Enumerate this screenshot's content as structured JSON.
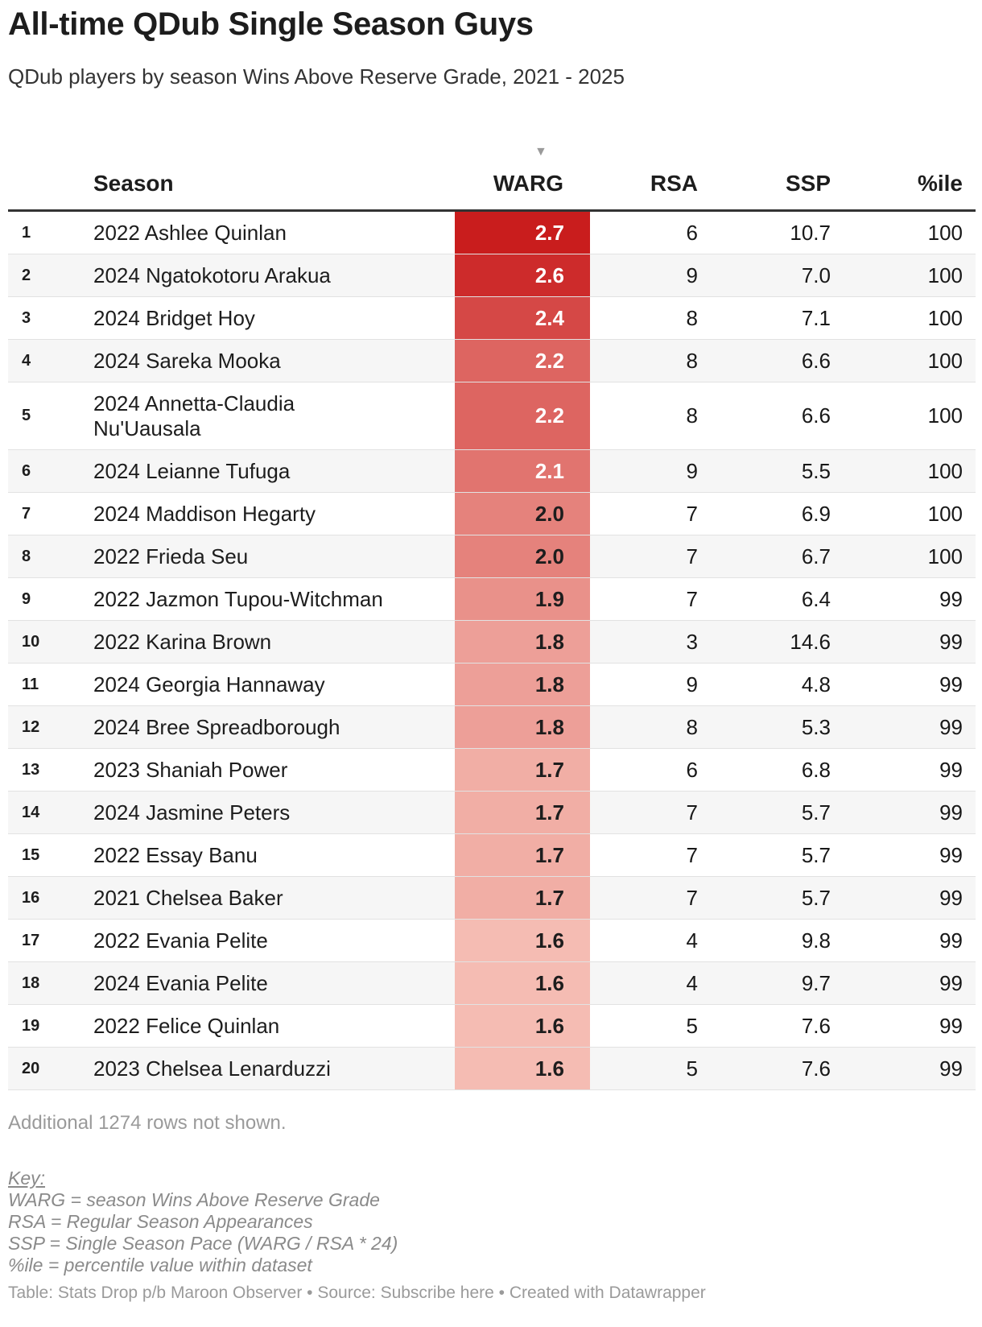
{
  "title": "All-time QDub Single Season Guys",
  "subtitle": "QDub players by season Wins Above Reserve Grade, 2021 - 2025",
  "columns": {
    "rank": "",
    "season": "Season",
    "warg": "WARG",
    "rsa": "RSA",
    "ssp": "SSP",
    "pct": "%ile"
  },
  "sort": {
    "column": "WARG",
    "direction": "descending",
    "indicator": "▼"
  },
  "colors": {
    "heat_low": "#f5bcb3",
    "heat_high": "#c91d1d",
    "header_rule": "#333333",
    "stripe": "#f6f6f6"
  },
  "chart_data": {
    "type": "table",
    "columns": [
      "",
      "Season",
      "WARG",
      "RSA",
      "SSP",
      "%ile"
    ],
    "rows": [
      {
        "rank": "1",
        "season": "2022 Ashlee Quinlan",
        "warg": "2.7",
        "rsa": "6",
        "ssp": "10.7",
        "pct": "100"
      },
      {
        "rank": "2",
        "season": "2024 Ngatokotoru Arakua",
        "warg": "2.6",
        "rsa": "9",
        "ssp": "7.0",
        "pct": "100"
      },
      {
        "rank": "3",
        "season": "2024 Bridget Hoy",
        "warg": "2.4",
        "rsa": "8",
        "ssp": "7.1",
        "pct": "100"
      },
      {
        "rank": "4",
        "season": "2024 Sareka Mooka",
        "warg": "2.2",
        "rsa": "8",
        "ssp": "6.6",
        "pct": "100"
      },
      {
        "rank": "5",
        "season": "2024 Annetta-Claudia Nu'Uausala",
        "warg": "2.2",
        "rsa": "8",
        "ssp": "6.6",
        "pct": "100"
      },
      {
        "rank": "6",
        "season": "2024 Leianne Tufuga",
        "warg": "2.1",
        "rsa": "9",
        "ssp": "5.5",
        "pct": "100"
      },
      {
        "rank": "7",
        "season": "2024 Maddison Hegarty",
        "warg": "2.0",
        "rsa": "7",
        "ssp": "6.9",
        "pct": "100"
      },
      {
        "rank": "8",
        "season": "2022 Frieda Seu",
        "warg": "2.0",
        "rsa": "7",
        "ssp": "6.7",
        "pct": "100"
      },
      {
        "rank": "9",
        "season": "2022 Jazmon Tupou-Witchman",
        "warg": "1.9",
        "rsa": "7",
        "ssp": "6.4",
        "pct": "99"
      },
      {
        "rank": "10",
        "season": "2022 Karina Brown",
        "warg": "1.8",
        "rsa": "3",
        "ssp": "14.6",
        "pct": "99"
      },
      {
        "rank": "11",
        "season": "2024 Georgia Hannaway",
        "warg": "1.8",
        "rsa": "9",
        "ssp": "4.8",
        "pct": "99"
      },
      {
        "rank": "12",
        "season": "2024 Bree Spreadborough",
        "warg": "1.8",
        "rsa": "8",
        "ssp": "5.3",
        "pct": "99"
      },
      {
        "rank": "13",
        "season": "2023 Shaniah Power",
        "warg": "1.7",
        "rsa": "6",
        "ssp": "6.8",
        "pct": "99"
      },
      {
        "rank": "14",
        "season": "2024 Jasmine Peters",
        "warg": "1.7",
        "rsa": "7",
        "ssp": "5.7",
        "pct": "99"
      },
      {
        "rank": "15",
        "season": "2022 Essay Banu",
        "warg": "1.7",
        "rsa": "7",
        "ssp": "5.7",
        "pct": "99"
      },
      {
        "rank": "16",
        "season": "2021 Chelsea Baker",
        "warg": "1.7",
        "rsa": "7",
        "ssp": "5.7",
        "pct": "99"
      },
      {
        "rank": "17",
        "season": "2022 Evania Pelite",
        "warg": "1.6",
        "rsa": "4",
        "ssp": "9.8",
        "pct": "99"
      },
      {
        "rank": "18",
        "season": "2024 Evania Pelite",
        "warg": "1.6",
        "rsa": "4",
        "ssp": "9.7",
        "pct": "99"
      },
      {
        "rank": "19",
        "season": "2022 Felice Quinlan",
        "warg": "1.6",
        "rsa": "5",
        "ssp": "7.6",
        "pct": "99"
      },
      {
        "rank": "20",
        "season": "2023 Chelsea Lenarduzzi",
        "warg": "1.6",
        "rsa": "5",
        "ssp": "7.6",
        "pct": "99"
      }
    ],
    "heatmap_column": "WARG",
    "heatmap_range": [
      1.6,
      2.7
    ]
  },
  "more_rows": "Additional 1274 rows not shown.",
  "key": {
    "title": "Key:",
    "lines": [
      "WARG = season Wins Above Reserve Grade",
      "RSA = Regular Season Appearances",
      "SSP = Single Season Pace (WARG / RSA * 24)",
      "%ile = percentile value within dataset"
    ]
  },
  "footer": "Table: Stats Drop p/b Maroon Observer • Source: Subscribe here • Created with Datawrapper"
}
